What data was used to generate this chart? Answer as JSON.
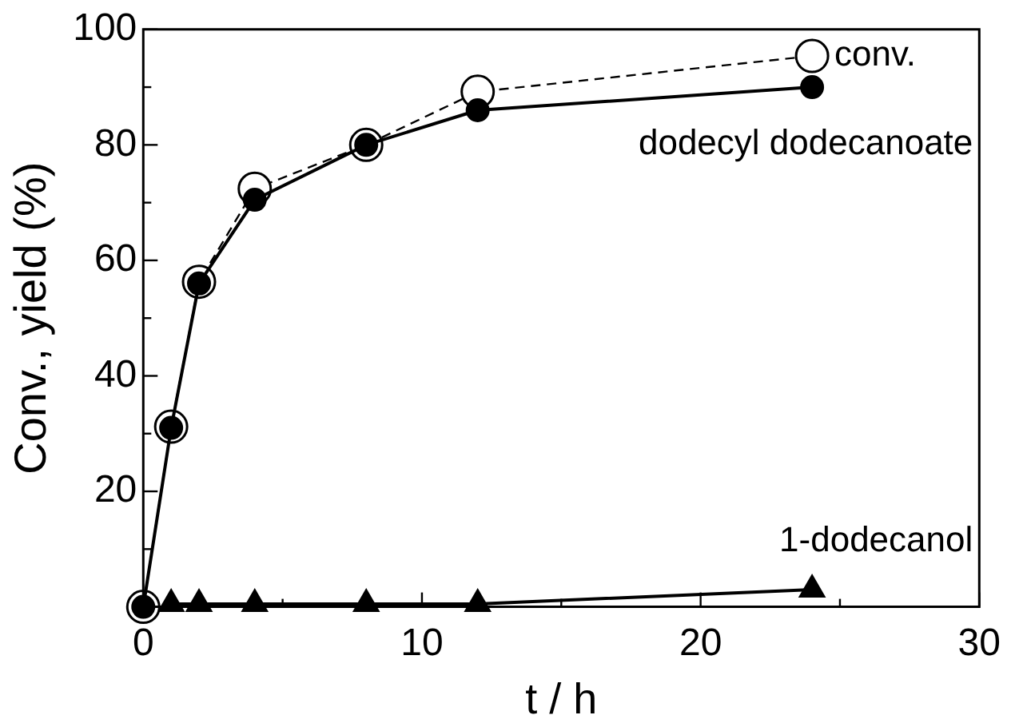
{
  "chart_data": {
    "type": "line",
    "xlabel": "t / h",
    "ylabel": "Conv., yield (%)",
    "x": [
      0,
      1,
      2,
      4,
      8,
      12,
      24
    ],
    "series": [
      {
        "name": "conv.",
        "color": "#000000",
        "values": [
          0,
          31.2,
          56.3,
          72.4,
          80,
          89.2,
          95.4
        ],
        "marker": "circle",
        "line_style": "dashed"
      },
      {
        "name": "dodecyl dodecanoate",
        "color": "#000000",
        "values": [
          0,
          31,
          56,
          70.5,
          80,
          86,
          90
        ],
        "marker": "circle",
        "line_style": "solid"
      },
      {
        "name": "1-dodecanol",
        "color": "#000000",
        "x": [
          1,
          2,
          4,
          8,
          12,
          24
        ],
        "values": [
          0.5,
          0.5,
          0.5,
          0.5,
          0.5,
          3
        ],
        "marker": "triangle",
        "line_style": "solid"
      }
    ],
    "xlim": [
      0,
      30
    ],
    "xticks": [
      0,
      {
        "value": 5,
        "label": null
      },
      10,
      {
        "value": 15,
        "label": null
      },
      20,
      {
        "value": 25,
        "label": null
      },
      30
    ],
    "ylim": [
      0,
      100
    ],
    "yticks": [
      {
        "value": 10,
        "label": null
      },
      20,
      {
        "value": 30,
        "label": null
      },
      40,
      {
        "value": 50,
        "label": null
      },
      60,
      {
        "value": 70,
        "label": null
      },
      80,
      {
        "value": 90,
        "label": null
      },
      100
    ],
    "grid": false,
    "legend": false
  }
}
